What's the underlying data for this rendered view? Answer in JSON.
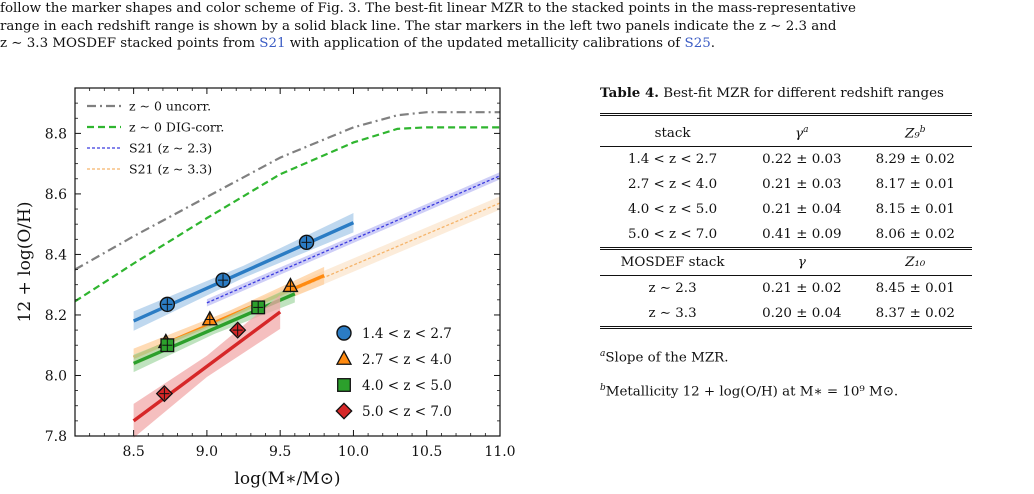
{
  "caption": {
    "line1": "follow the marker shapes and color scheme of Fig. 3. The best-fit linear MZR to the stacked points in the mass-representative",
    "line2": "range in each redshift range is shown by a solid black line. The star markers in the left two panels indicate the z ∼ 2.3 and",
    "line3a": "z ∼ 3.3 MOSDEF stacked points from",
    "cite1": "S21",
    "line3b": "with application of the updated metallicity calibrations of",
    "cite2": "S25",
    "line3c": "."
  },
  "table": {
    "caption_bold": "Table 4.",
    "caption_text": "Best-fit MZR for different redshift ranges",
    "headers": [
      "stack",
      "γ",
      "Z₉"
    ],
    "header_sups": [
      "",
      "a",
      "b"
    ],
    "rows": [
      [
        "1.4 < z < 2.7",
        "0.22 ± 0.03",
        "8.29 ± 0.02"
      ],
      [
        "2.7 < z < 4.0",
        "0.21 ± 0.03",
        "8.17 ± 0.01"
      ],
      [
        "4.0 < z < 5.0",
        "0.21 ± 0.04",
        "8.15 ± 0.01"
      ],
      [
        "5.0 < z < 7.0",
        "0.41 ± 0.09",
        "8.06 ± 0.02"
      ]
    ],
    "section2_headers": [
      "MOSDEF stack",
      "γ",
      "Z₁₀"
    ],
    "rows2": [
      [
        "z ∼ 2.3",
        "0.21 ± 0.02",
        "8.45 ± 0.01"
      ],
      [
        "z ∼ 3.3",
        "0.20 ± 0.04",
        "8.37 ± 0.02"
      ]
    ],
    "note_a": "Slope of the MZR.",
    "note_b": "Metallicity 12 + log(O/H) at M∗ = 10⁹ M⊙.",
    "note_a_mark": "a",
    "note_b_mark": "b"
  },
  "chart_data": {
    "type": "line",
    "xlabel": "log(M∗/M⊙)",
    "ylabel": "12 + log(O/H)",
    "xlim": [
      8.1,
      11.0
    ],
    "ylim": [
      7.8,
      8.95
    ],
    "xticks": [
      8.5,
      9.0,
      9.5,
      10.0,
      10.5,
      11.0
    ],
    "xtick_labels": [
      "8.5",
      "9.0",
      "9.5",
      "10.0",
      "10.5",
      "11.0"
    ],
    "yticks": [
      7.8,
      8.0,
      8.2,
      8.4,
      8.6,
      8.8
    ],
    "ytick_labels": [
      "7.8",
      "8.0",
      "8.2",
      "8.4",
      "8.6",
      "8.8"
    ],
    "grid": false,
    "legend_top": {
      "placement": "top-left",
      "entries": [
        {
          "label": "z ∼ 0 uncorr.",
          "color": "#808080",
          "style": "dashdot"
        },
        {
          "label": "z ∼ 0 DIG-corr.",
          "color": "#2fb52f",
          "style": "dashed"
        },
        {
          "label": "S21 (z ∼ 2.3)",
          "color": "#3a3adf",
          "style": "dotted"
        },
        {
          "label": "S21 (z ∼ 3.3)",
          "color": "#f5b46a",
          "style": "dotted"
        }
      ]
    },
    "legend_bottom": {
      "placement": "lower-right",
      "entries": [
        {
          "label": "1.4 < z < 2.7",
          "color": "#2b7cc4",
          "marker": "circle"
        },
        {
          "label": "2.7 < z < 4.0",
          "color": "#ff8a10",
          "marker": "triangle"
        },
        {
          "label": "4.0 < z < 5.0",
          "color": "#2ca02c",
          "marker": "square"
        },
        {
          "label": "5.0 < z < 7.0",
          "color": "#d62728",
          "marker": "diamond"
        }
      ]
    },
    "reference_curves": [
      {
        "name": "z ∼ 0 uncorr.",
        "color": "#808080",
        "style": "dashdot",
        "x": [
          8.1,
          8.5,
          9.0,
          9.5,
          10.0,
          10.3,
          10.5,
          11.0
        ],
        "y": [
          8.35,
          8.46,
          8.59,
          8.72,
          8.82,
          8.86,
          8.87,
          8.87
        ]
      },
      {
        "name": "z ∼ 0 DIG-corr.",
        "color": "#2fb52f",
        "style": "dashed",
        "x": [
          8.1,
          8.5,
          9.0,
          9.5,
          10.0,
          10.3,
          10.5,
          11.0
        ],
        "y": [
          8.245,
          8.37,
          8.52,
          8.665,
          8.77,
          8.815,
          8.82,
          8.82
        ]
      },
      {
        "name": "S21 (z ∼ 2.3)",
        "color": "#3a3adf",
        "style": "dotted",
        "x": [
          9.0,
          11.0
        ],
        "y": [
          8.24,
          8.66
        ],
        "band": 0.012
      },
      {
        "name": "S21 (z ∼ 3.3)",
        "color": "#f5b46a",
        "style": "dotted",
        "x": [
          9.0,
          11.0
        ],
        "y": [
          8.16,
          8.57
        ],
        "band": 0.022
      }
    ],
    "fits": [
      {
        "name": "1.4 < z < 2.7",
        "color": "#2b7cc4",
        "band_color": "#a9cbea",
        "x": [
          8.5,
          10.0
        ],
        "y": [
          8.18,
          8.505
        ],
        "band": 0.02
      },
      {
        "name": "2.7 < z < 4.0",
        "color": "#ff8a10",
        "band_color": "#ffcf9c",
        "x": [
          8.5,
          9.8
        ],
        "y": [
          8.06,
          8.33
        ],
        "band": 0.018
      },
      {
        "name": "4.0 < z < 5.0",
        "color": "#2ca02c",
        "band_color": "#a9daa9",
        "x": [
          8.5,
          9.6
        ],
        "y": [
          8.04,
          8.27
        ],
        "band": 0.018
      },
      {
        "name": "5.0 < z < 7.0",
        "color": "#d62728",
        "band_color": "#f2a9a9",
        "x": [
          8.5,
          9.5
        ],
        "y": [
          7.85,
          8.21
        ],
        "band": 0.035
      }
    ],
    "series": [
      {
        "name": "1.4 < z < 2.7",
        "color": "#2b7cc4",
        "marker": "circle",
        "x": [
          8.73,
          9.11,
          9.68
        ],
        "y": [
          8.235,
          8.315,
          8.44
        ]
      },
      {
        "name": "2.7 < z < 4.0",
        "color": "#ff8a10",
        "marker": "triangle",
        "x": [
          8.72,
          9.02,
          9.57
        ],
        "y": [
          8.11,
          8.185,
          8.295
        ]
      },
      {
        "name": "4.0 < z < 5.0",
        "color": "#2ca02c",
        "marker": "square",
        "x": [
          8.73,
          9.35
        ],
        "y": [
          8.1,
          8.225
        ]
      },
      {
        "name": "5.0 < z < 7.0",
        "color": "#d62728",
        "marker": "diamond",
        "x": [
          8.71,
          9.21
        ],
        "y": [
          7.94,
          8.15
        ]
      }
    ]
  }
}
